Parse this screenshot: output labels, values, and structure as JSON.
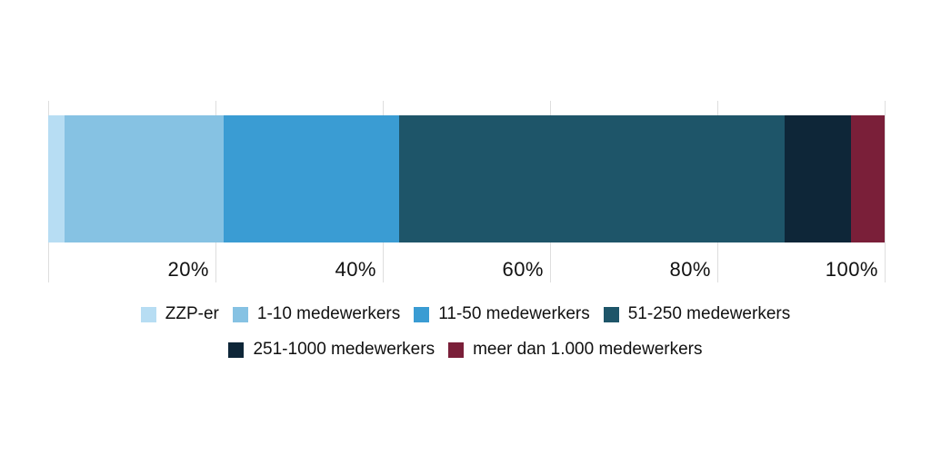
{
  "chart_data": {
    "type": "bar",
    "variant": "horizontal-stacked-100",
    "title": "",
    "xlabel": "",
    "ylabel": "",
    "xlim": [
      0,
      100
    ],
    "grid": true,
    "gridline_color": "#dedede",
    "background_color": "#ffffff",
    "text_color": "#111111",
    "gridline_positions": [
      0,
      20,
      40,
      60,
      80,
      100
    ],
    "x_ticks": [
      {
        "label": "20%",
        "position": 20
      },
      {
        "label": "40%",
        "position": 40
      },
      {
        "label": "60%",
        "position": 60
      },
      {
        "label": "80%",
        "position": 80
      },
      {
        "label": "100%",
        "position": 100
      }
    ],
    "categories": [
      "ZZP-er",
      "1-10 medewerkers",
      "11-50 medewerkers",
      "51-250 medewerkers",
      "251-1000 medewerkers",
      "meer dan 1.000 medewerkers"
    ],
    "values": [
      2,
      19,
      21,
      46,
      8,
      4
    ],
    "colors": [
      "#b7ddf3",
      "#86c2e3",
      "#3a9cd3",
      "#1e5569",
      "#0e2638",
      "#7a1f39"
    ],
    "legend_position": "bottom",
    "legend_rows": [
      [
        0,
        1,
        2,
        3
      ],
      [
        4,
        5
      ]
    ]
  }
}
